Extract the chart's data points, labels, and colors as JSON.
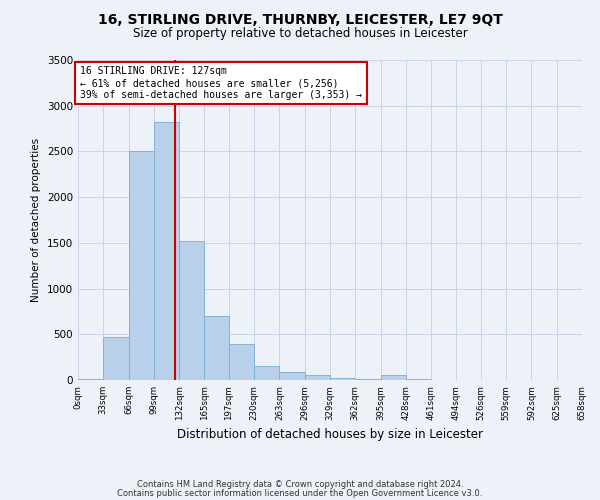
{
  "title": "16, STIRLING DRIVE, THURNBY, LEICESTER, LE7 9QT",
  "subtitle": "Size of property relative to detached houses in Leicester",
  "xlabel": "Distribution of detached houses by size in Leicester",
  "ylabel": "Number of detached properties",
  "property_size": 127,
  "property_line_label": "16 STIRLING DRIVE: 127sqm",
  "annotation_line1": "← 61% of detached houses are smaller (5,256)",
  "annotation_line2": "39% of semi-detached houses are larger (3,353) →",
  "footnote1": "Contains HM Land Registry data © Crown copyright and database right 2024.",
  "footnote2": "Contains public sector information licensed under the Open Government Licence v3.0.",
  "bin_edges": [
    0,
    33,
    66,
    99,
    132,
    165,
    197,
    230,
    263,
    296,
    329,
    362,
    395,
    428,
    461,
    494,
    526,
    559,
    592,
    625,
    658
  ],
  "bin_labels": [
    "0sqm",
    "33sqm",
    "66sqm",
    "99sqm",
    "132sqm",
    "165sqm",
    "197sqm",
    "230sqm",
    "263sqm",
    "296sqm",
    "329sqm",
    "362sqm",
    "395sqm",
    "428sqm",
    "461sqm",
    "494sqm",
    "526sqm",
    "559sqm",
    "592sqm",
    "625sqm",
    "658sqm"
  ],
  "bar_heights": [
    15,
    470,
    2500,
    2820,
    1520,
    700,
    390,
    155,
    90,
    50,
    25,
    15,
    55,
    15,
    5,
    5,
    0,
    0,
    0,
    0
  ],
  "bar_color": "#b8d0ea",
  "bar_edge_color": "#7aadd4",
  "line_color": "#cc0000",
  "annotation_box_color": "#cc0000",
  "bg_color": "#edf2f9",
  "grid_color": "#c8d4e8",
  "ylim": [
    0,
    3500
  ],
  "yticks": [
    0,
    500,
    1000,
    1500,
    2000,
    2500,
    3000,
    3500
  ]
}
